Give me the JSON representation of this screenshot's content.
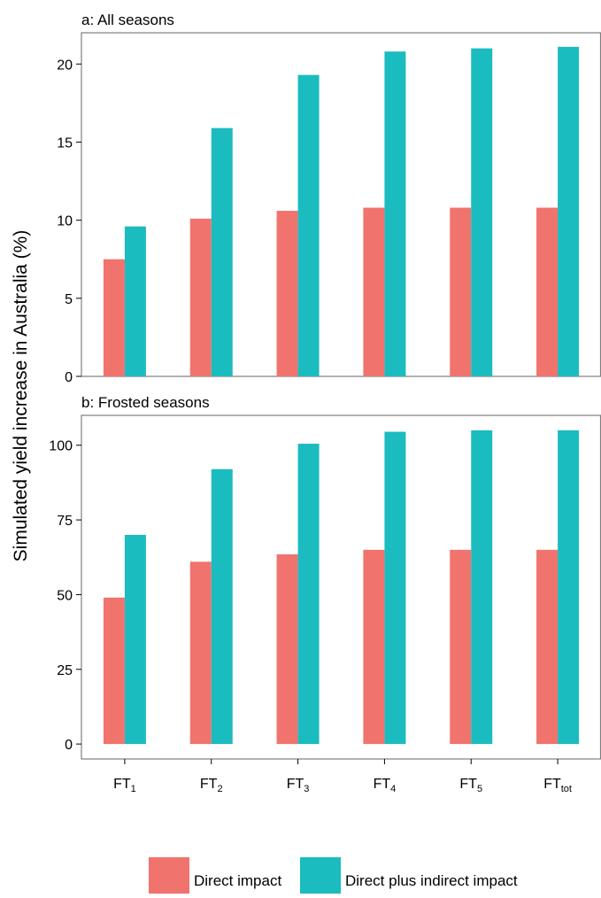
{
  "ylabel": "Simulated yield increase in Australia (%)",
  "colors": {
    "direct": "#f0736d",
    "indirect": "#1bbcbf",
    "axis": "#000000",
    "frame": "#7f7f7f"
  },
  "legend": [
    {
      "label": "Direct impact",
      "color": "#f0736d"
    },
    {
      "label": "Direct plus indirect impact",
      "color": "#1bbcbf"
    }
  ],
  "categories": [
    {
      "base": "FT",
      "sub": "1"
    },
    {
      "base": "FT",
      "sub": "2"
    },
    {
      "base": "FT",
      "sub": "3"
    },
    {
      "base": "FT",
      "sub": "4"
    },
    {
      "base": "FT",
      "sub": "5"
    },
    {
      "base": "FT",
      "sub": "tot"
    }
  ],
  "chart_data": [
    {
      "type": "bar",
      "title": "a: All seasons",
      "ylim": [
        0,
        22
      ],
      "yticks": [
        0,
        5,
        10,
        15,
        20
      ],
      "series": [
        {
          "name": "Direct impact",
          "values": [
            7.5,
            10.1,
            10.6,
            10.8,
            10.8,
            10.8
          ]
        },
        {
          "name": "Direct plus indirect impact",
          "values": [
            9.6,
            15.9,
            19.3,
            20.8,
            21.0,
            21.1
          ]
        }
      ]
    },
    {
      "type": "bar",
      "title": "b: Frosted seasons",
      "ylim": [
        -5,
        110
      ],
      "yticks": [
        0,
        25,
        50,
        75,
        100
      ],
      "series": [
        {
          "name": "Direct impact",
          "values": [
            49,
            61,
            63.5,
            65,
            65,
            65
          ]
        },
        {
          "name": "Direct plus indirect impact",
          "values": [
            70,
            92,
            100.5,
            104.5,
            105,
            105
          ]
        }
      ]
    }
  ]
}
